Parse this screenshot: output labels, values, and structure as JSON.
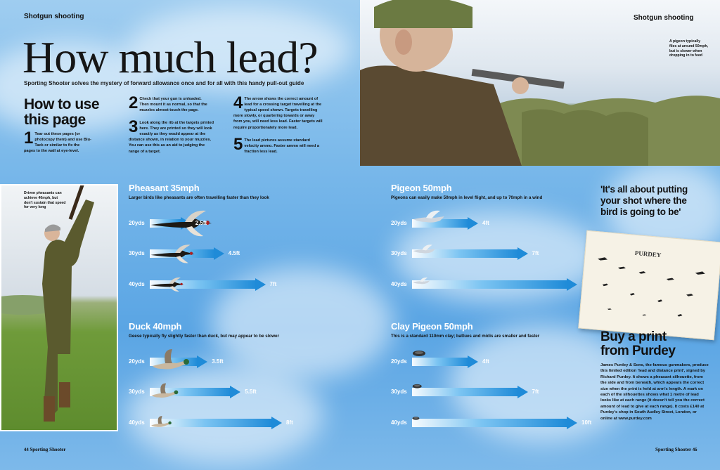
{
  "left_page": {
    "section_tag": "Shotgun shooting",
    "title": "How much lead?",
    "subtitle": "Sporting Shooter solves the mystery of forward allowance once and for all with this handy pull-out guide",
    "howto_heading_line1": "How to use",
    "howto_heading_line2": "this page",
    "steps": [
      {
        "num": "1",
        "text": "Tear out these pages (or photocopy them) and use Blu-Tack or similar to fix the pages to the wall at eye-level."
      },
      {
        "num": "2",
        "text": "Check that your gun is unloaded. Then mount it as normal, so that the muzzles almost touch the page."
      },
      {
        "num": "3",
        "text": "Look along the rib at the targets printed here. They are printed so they will look exactly as they would appear at the distance shown, in relation to your muzzles. You can use this as an aid to judging the range of a target."
      },
      {
        "num": "4",
        "text": "The arrow shows the correct amount of lead for a crossing target travelling at the typical speed shown. Targets travelling more slowly, or quartering towards or away from you, will need less lead. Faster targets will require proportionately more lead."
      },
      {
        "num": "5",
        "text": "The lead pictures assume standard velocity ammo. Faster ammo will need a fraction less lead."
      }
    ],
    "photo_caption": "Driven pheasants can achieve 40mph, but don't sustain that speed for very long",
    "footer_page": "44",
    "footer_mag": "Sporting Shooter"
  },
  "right_page": {
    "section_tag": "Shotgun shooting",
    "photo_caption": "A pigeon typically flies at around 50mph, but is slower when dropping in to feed",
    "quote": "'It's all about putting your shot where the bird is going to be'",
    "print_heading_line1": "Buy a print",
    "print_heading_line2": "from Purdey",
    "print_body": "James Purdey & Sons, the famous gunmakers, produce this limited edition 'lead and distance print', signed by Richard Purdey. It shows a pheasant silhouette, from the side and from beneath, which appears the correct size when the print is held at arm's length. A mark on each of the silhouettes shows what 1 metre of lead looks like at each range (it doesn't tell you the correct amount of lead to give at each range). It costs £140 at Purdey's shop in South Audley Street, London, or online at www.purdey.com",
    "print_card_title": "PURDEY",
    "footer_mag": "Sporting Shooter",
    "footer_page": "45"
  },
  "sections": [
    {
      "id": "pheasant",
      "title": "Pheasant 35mph",
      "desc": "Larger birds like pheasants are often travelling faster than they look",
      "bird": "pheasant-icon",
      "rows": [
        {
          "range": "20yds",
          "lead": "2.5ft",
          "lead_ft": 2.5
        },
        {
          "range": "30yds",
          "lead": "4.5ft",
          "lead_ft": 4.5
        },
        {
          "range": "40yds",
          "lead": "7ft",
          "lead_ft": 7
        }
      ]
    },
    {
      "id": "pigeon",
      "title": "Pigeon 50mph",
      "desc": "Pigeons can easily make 50mph in level flight, and up to 70mph in a wind",
      "bird": "pigeon-icon",
      "rows": [
        {
          "range": "20yds",
          "lead": "4ft",
          "lead_ft": 4
        },
        {
          "range": "30yds",
          "lead": "7ft",
          "lead_ft": 7
        },
        {
          "range": "40yds",
          "lead": "10ft",
          "lead_ft": 10
        }
      ]
    },
    {
      "id": "duck",
      "title": "Duck 40mph",
      "desc": "Geese typically fly slightly faster than duck, but may appear to be slower",
      "bird": "duck-icon",
      "rows": [
        {
          "range": "20yds",
          "lead": "3.5ft",
          "lead_ft": 3.5
        },
        {
          "range": "30yds",
          "lead": "5.5ft",
          "lead_ft": 5.5
        },
        {
          "range": "40yds",
          "lead": "8ft",
          "lead_ft": 8
        }
      ]
    },
    {
      "id": "clay",
      "title": "Clay Pigeon 50mph",
      "desc": "This is a standard 110mm clay; battues and midis are smaller and faster",
      "bird": "clay-icon",
      "rows": [
        {
          "range": "20yds",
          "lead": "4ft",
          "lead_ft": 4
        },
        {
          "range": "30yds",
          "lead": "7ft",
          "lead_ft": 7
        },
        {
          "range": "40yds",
          "lead": "10ft",
          "lead_ft": 10
        }
      ]
    }
  ],
  "colors": {
    "arrow": "#1f8bd8",
    "sky": "#6fb2e8",
    "text_white": "#ffffff"
  }
}
